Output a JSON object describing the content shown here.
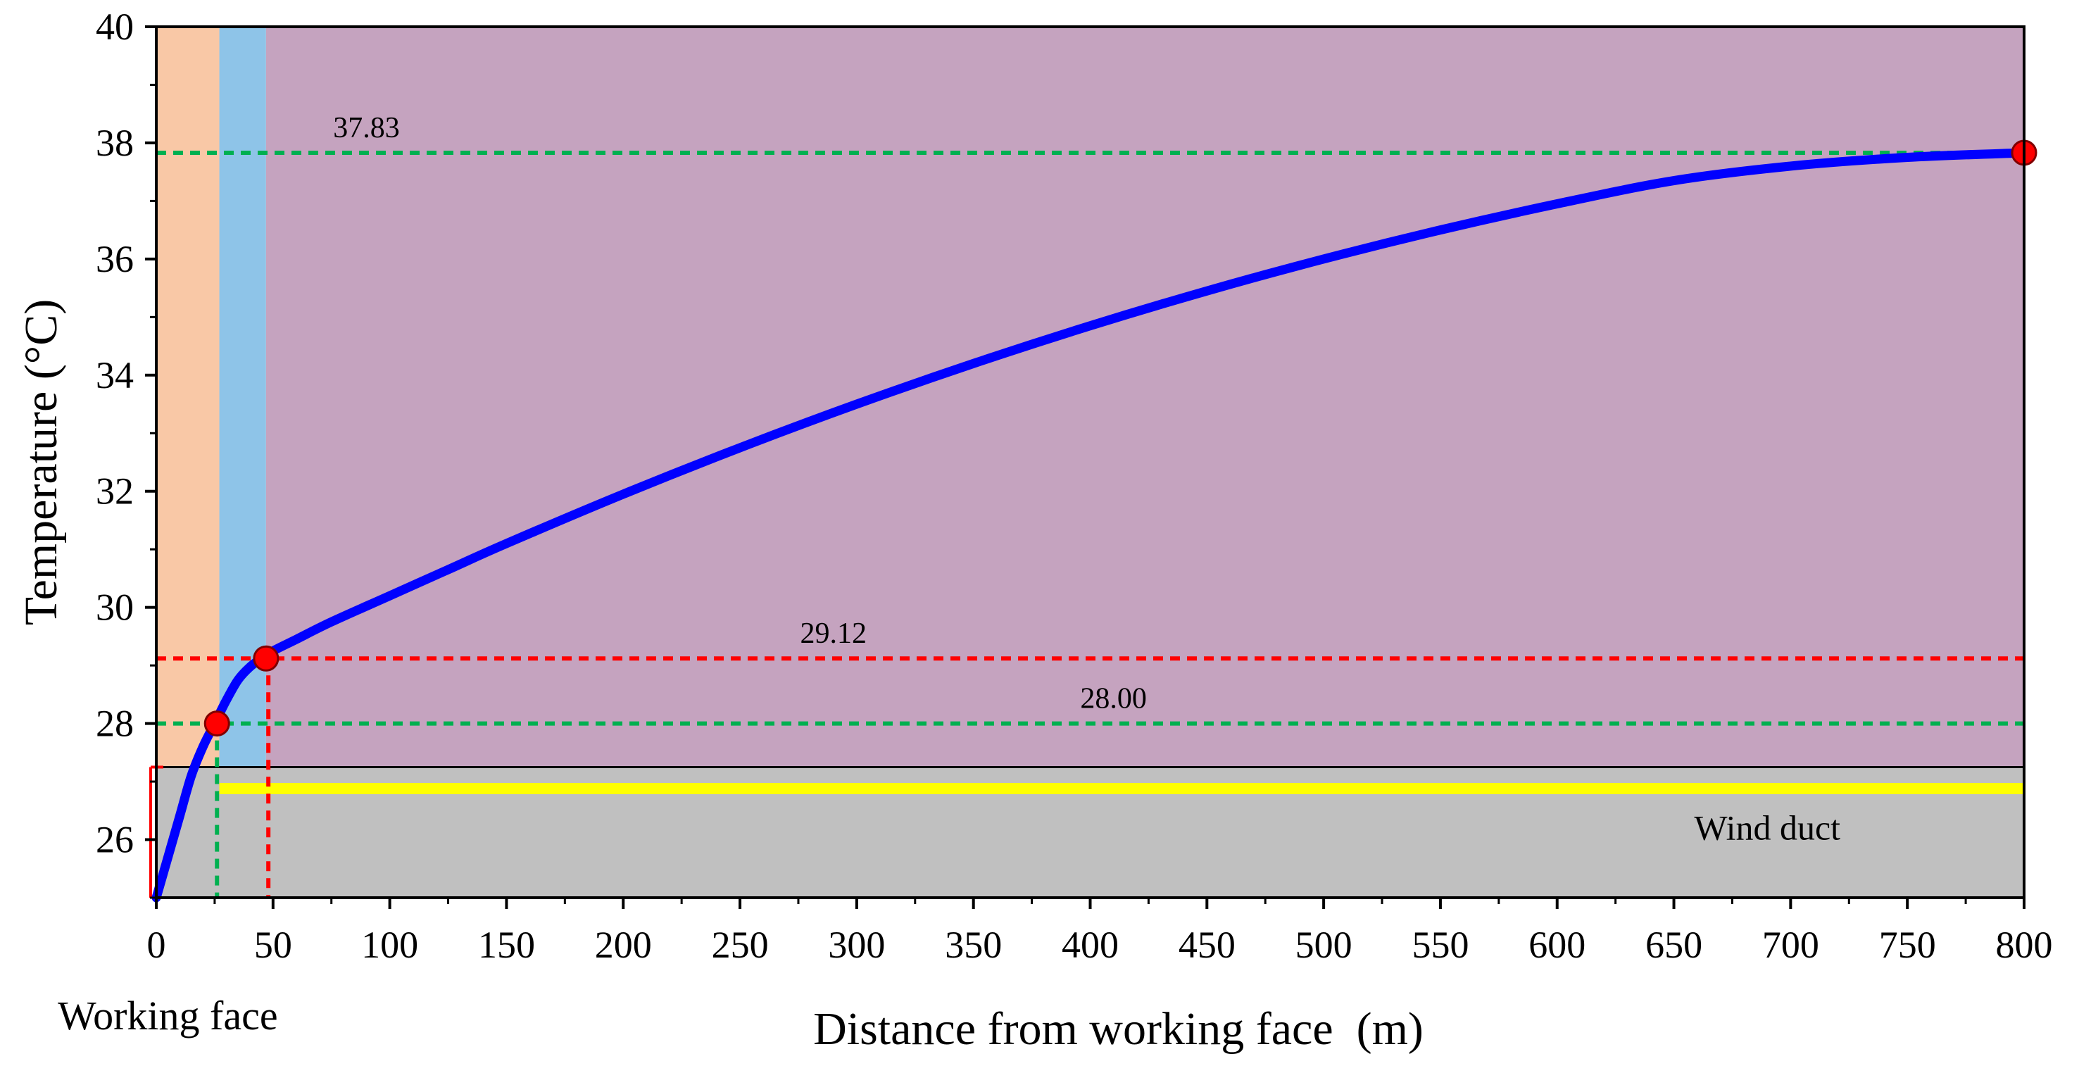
{
  "chart_data": {
    "type": "line",
    "title": "",
    "xlabel": "Distance from working face  (m)",
    "ylabel": "Temperature (°C)",
    "xlim": [
      0,
      800
    ],
    "ylim": [
      25,
      40
    ],
    "xticks": [
      0,
      50,
      100,
      150,
      200,
      250,
      300,
      350,
      400,
      450,
      500,
      550,
      600,
      650,
      700,
      750,
      800
    ],
    "yticks": [
      26,
      28,
      30,
      32,
      34,
      36,
      38,
      40
    ],
    "xtick_labels": [
      "0",
      "50",
      "100",
      "150",
      "200",
      "250",
      "300",
      "350",
      "400",
      "450",
      "500",
      "550",
      "600",
      "650",
      "700",
      "750",
      "800"
    ],
    "ytick_labels": [
      "26",
      "28",
      "30",
      "32",
      "34",
      "36",
      "38",
      "40"
    ],
    "grid": false,
    "series": [
      {
        "color": "#0000ff",
        "x": [
          0,
          5,
          10,
          15,
          20,
          25,
          30,
          35,
          40,
          45,
          50,
          60,
          75,
          100,
          125,
          150,
          200,
          250,
          300,
          350,
          400,
          450,
          500,
          550,
          600,
          650,
          700,
          750,
          800
        ],
        "y": [
          25.0,
          25.7,
          26.4,
          27.1,
          27.6,
          28.0,
          28.4,
          28.75,
          28.97,
          29.12,
          29.25,
          29.45,
          29.75,
          30.2,
          30.65,
          31.1,
          31.95,
          32.75,
          33.5,
          34.2,
          34.85,
          35.45,
          36.0,
          36.5,
          36.95,
          37.35,
          37.6,
          37.75,
          37.83
        ]
      }
    ],
    "markers": [
      {
        "x": 26,
        "y": 28.0,
        "color": "#ff0000"
      },
      {
        "x": 47,
        "y": 29.12,
        "color": "#ff0000"
      },
      {
        "x": 800,
        "y": 37.83,
        "color": "#ff0000"
      }
    ],
    "reference_lines": [
      {
        "y": 37.83,
        "color": "#00b050",
        "label": "37.83"
      },
      {
        "y": 29.12,
        "color": "#ff0000",
        "label": "29.12"
      },
      {
        "y": 28.0,
        "color": "#00b050",
        "label": "28.00"
      }
    ],
    "vertical_reference_lines": [
      {
        "x": 26,
        "color": "#00b050"
      },
      {
        "x": 48,
        "color": "#ff0000"
      }
    ],
    "bands": [
      {
        "x0": 0,
        "x1": 27,
        "color": "#f9c8a6"
      },
      {
        "x0": 27,
        "x1": 47,
        "color": "#8ec4e8"
      },
      {
        "x0": 47,
        "x1": 800,
        "color": "#c5a3bf"
      }
    ],
    "wind_duct": {
      "y0": 25,
      "y1": 27.25,
      "color": "#c0c0c0",
      "line_y": 26.88,
      "line_color": "#ffff00",
      "label": "Wind duct"
    },
    "working_face_label": "Working face"
  }
}
